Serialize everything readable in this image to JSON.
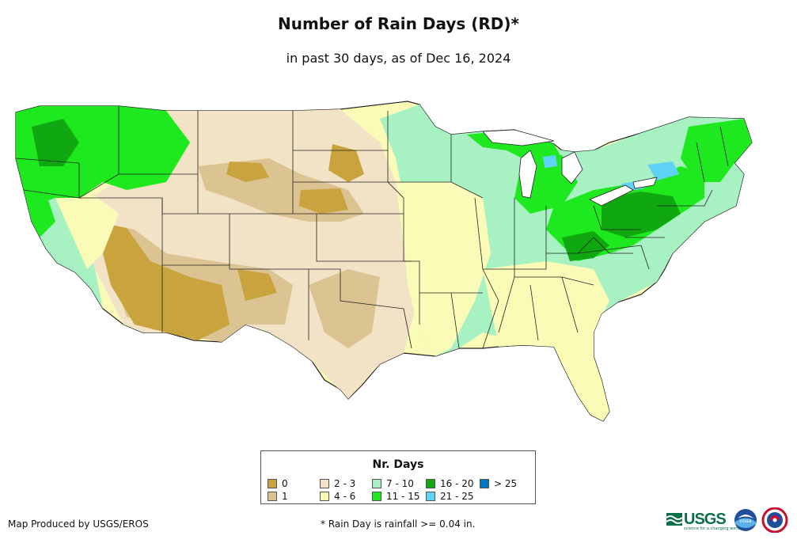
{
  "header": {
    "title": "Number of Rain Days (RD)*",
    "subtitle": "in past 30 days, as of Dec 16, 2024"
  },
  "legend": {
    "title": "Nr. Days",
    "items": [
      {
        "label": "0",
        "color": "#c9a33d"
      },
      {
        "label": "1",
        "color": "#dcc392"
      },
      {
        "label": "2 - 3",
        "color": "#f2e2c6"
      },
      {
        "label": "4 - 6",
        "color": "#fbfbb8"
      },
      {
        "label": "7 - 10",
        "color": "#a7f1c3"
      },
      {
        "label": "11 - 15",
        "color": "#1ee81e"
      },
      {
        "label": "16 - 20",
        "color": "#10a810"
      },
      {
        "label": "21 - 25",
        "color": "#5fd3f5"
      },
      {
        "label": "> 25",
        "color": "#0077c2"
      }
    ]
  },
  "footer": {
    "credit": "Map Produced by USGS/EROS",
    "footnote": "* Rain Day is rainfall >= 0.04 in."
  },
  "logos": {
    "usgs_text": "USGS",
    "usgs_tagline": "science for a changing world",
    "noaa_text": "noaa"
  }
}
